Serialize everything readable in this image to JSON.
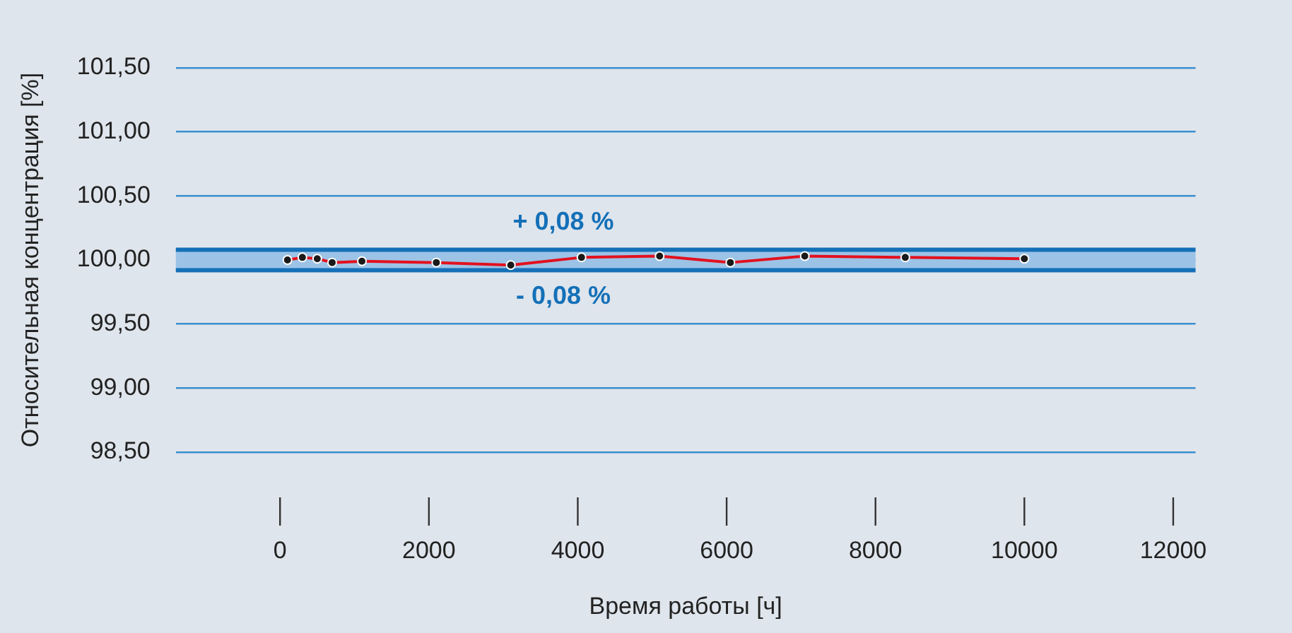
{
  "chart_data": {
    "type": "line",
    "xlabel": "Время работы [ч]",
    "ylabel": "Относительная концентрация [%]",
    "x": [
      100,
      300,
      500,
      700,
      1100,
      2100,
      3100,
      4050,
      5100,
      6050,
      7050,
      8400,
      10000
    ],
    "series": [
      {
        "color": "#e3101e",
        "values": [
          100.0,
          100.02,
          100.01,
          99.98,
          99.99,
          99.98,
          99.96,
          100.02,
          100.03,
          99.98,
          100.03,
          100.02,
          100.01
        ]
      }
    ],
    "xlim": [
      -1400,
      12300
    ],
    "xticks": [
      0,
      2000,
      4000,
      6000,
      8000,
      10000,
      12000
    ],
    "ylim": [
      98.5,
      101.5
    ],
    "yticks": [
      {
        "value": 98.5,
        "label": "98,50"
      },
      {
        "value": 99,
        "label": "99,00"
      },
      {
        "value": 99.5,
        "label": "99,50"
      },
      {
        "value": 100,
        "label": "100,00"
      },
      {
        "value": 100.5,
        "label": "100,50"
      },
      {
        "value": 101,
        "label": "101,00"
      },
      {
        "value": 101.5,
        "label": "101,50"
      }
    ],
    "grid": "y",
    "marker": "circle",
    "line_style": "solid",
    "bands": [
      {
        "axis": "y",
        "from": 99.92,
        "to": 100.08,
        "color": "#9cc3e6"
      }
    ],
    "ref_lines": [
      {
        "axis": "y",
        "value": 100.08,
        "color": "#1470b8"
      },
      {
        "axis": "y",
        "value": 99.92,
        "color": "#1470b8"
      }
    ],
    "annotations": [
      "+ 0,08 %",
      "- 0,08 %"
    ]
  }
}
